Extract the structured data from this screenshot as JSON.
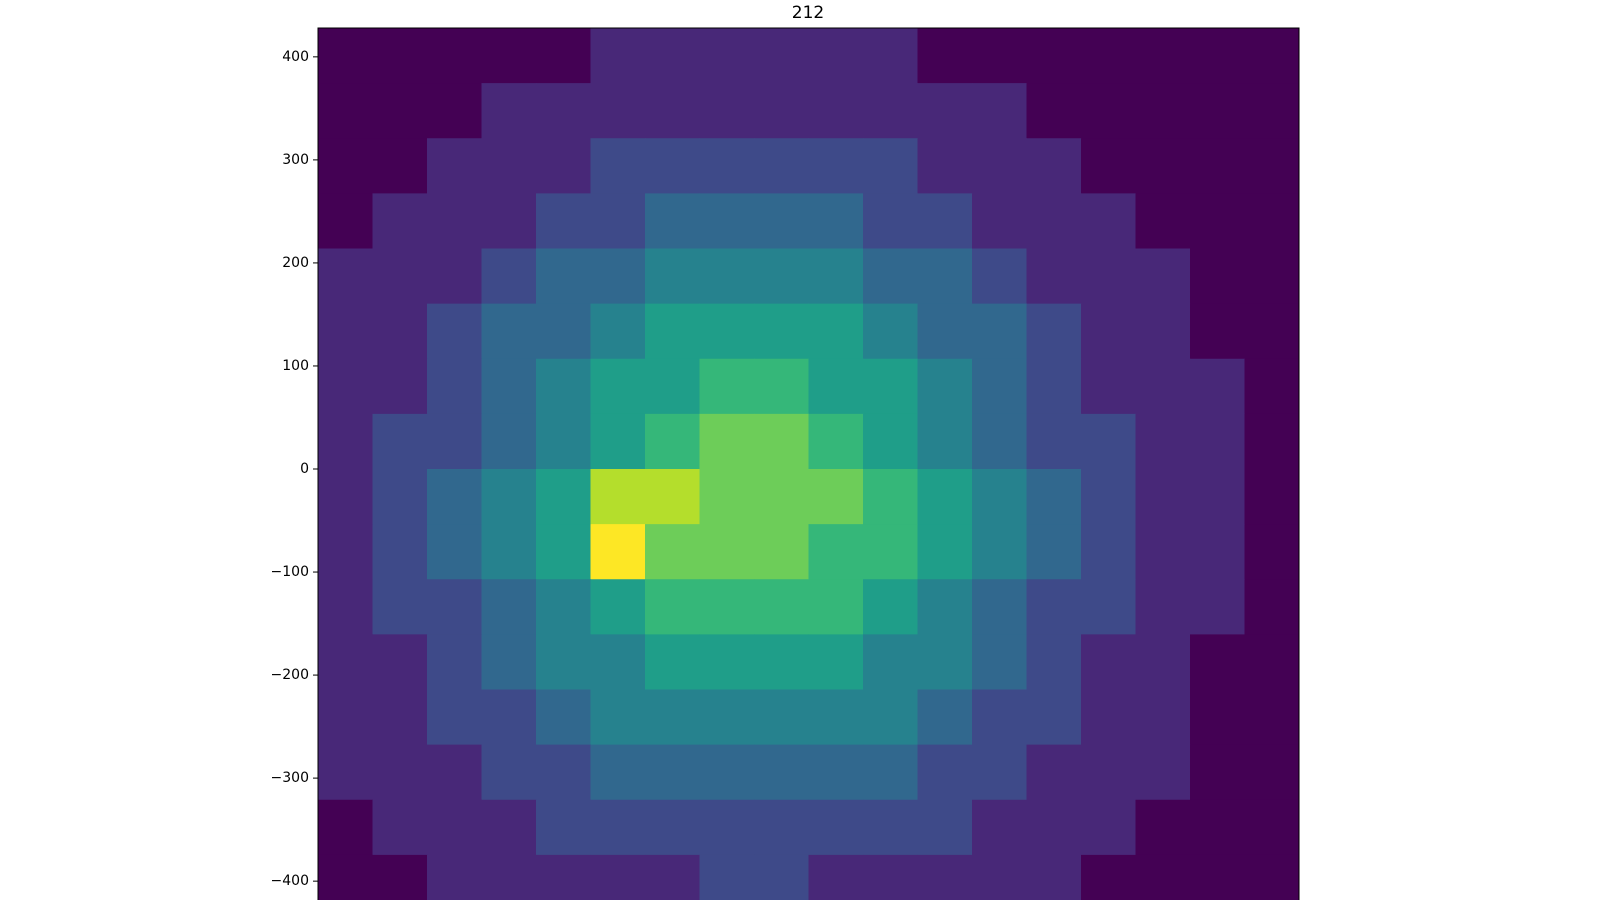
{
  "chart_data": {
    "type": "heatmap",
    "title": "212",
    "colormap": "viridis",
    "ylim": [
      -428,
      428
    ],
    "yticks": [
      400,
      300,
      200,
      100,
      0,
      {
        "value": -100,
        "label": "−100"
      },
      {
        "value": -200,
        "label": "−200"
      },
      {
        "value": -300,
        "label": "−300"
      },
      {
        "value": -400,
        "label": "−400"
      }
    ],
    "z": [
      [
        1,
        1,
        1,
        1,
        1,
        2,
        2,
        2,
        2,
        2,
        2,
        1,
        1,
        1,
        1,
        1,
        1,
        1
      ],
      [
        1,
        1,
        1,
        2,
        2,
        2,
        2,
        2,
        2,
        2,
        2,
        2,
        2,
        1,
        1,
        1,
        1,
        1
      ],
      [
        1,
        1,
        2,
        2,
        2,
        3,
        3,
        3,
        3,
        3,
        3,
        2,
        2,
        2,
        1,
        1,
        1,
        1
      ],
      [
        1,
        2,
        2,
        2,
        3,
        3,
        4,
        4,
        4,
        4,
        3,
        3,
        2,
        2,
        2,
        1,
        1,
        1
      ],
      [
        2,
        2,
        2,
        3,
        4,
        4,
        5,
        5,
        5,
        5,
        4,
        4,
        3,
        2,
        2,
        2,
        1,
        1
      ],
      [
        2,
        2,
        3,
        4,
        4,
        5,
        6,
        6,
        6,
        6,
        5,
        4,
        4,
        3,
        2,
        2,
        1,
        1
      ],
      [
        2,
        2,
        3,
        4,
        5,
        6,
        6,
        7,
        7,
        6,
        6,
        5,
        4,
        3,
        2,
        2,
        2,
        1
      ],
      [
        2,
        3,
        3,
        4,
        5,
        6,
        7,
        8,
        8,
        7,
        6,
        5,
        4,
        3,
        3,
        2,
        2,
        1
      ],
      [
        2,
        3,
        4,
        5,
        6,
        9,
        9,
        8,
        8,
        8,
        7,
        6,
        5,
        4,
        3,
        2,
        2,
        1
      ],
      [
        2,
        3,
        4,
        5,
        6,
        10,
        8,
        8,
        8,
        7,
        7,
        6,
        5,
        4,
        3,
        2,
        2,
        1
      ],
      [
        2,
        3,
        3,
        4,
        5,
        6,
        7,
        7,
        7,
        7,
        6,
        5,
        4,
        3,
        3,
        2,
        2,
        1
      ],
      [
        2,
        2,
        3,
        4,
        5,
        5,
        6,
        6,
        6,
        6,
        5,
        5,
        4,
        3,
        2,
        2,
        1,
        1
      ],
      [
        2,
        2,
        3,
        3,
        4,
        5,
        5,
        5,
        5,
        5,
        5,
        4,
        3,
        3,
        2,
        2,
        1,
        1
      ],
      [
        2,
        2,
        2,
        3,
        3,
        4,
        4,
        4,
        4,
        4,
        4,
        3,
        3,
        2,
        2,
        2,
        1,
        1
      ],
      [
        1,
        2,
        2,
        2,
        3,
        3,
        3,
        3,
        3,
        3,
        3,
        3,
        2,
        2,
        2,
        1,
        1,
        1
      ],
      [
        1,
        1,
        2,
        2,
        2,
        2,
        2,
        3,
        3,
        2,
        2,
        2,
        2,
        2,
        1,
        1,
        1,
        1
      ]
    ]
  }
}
